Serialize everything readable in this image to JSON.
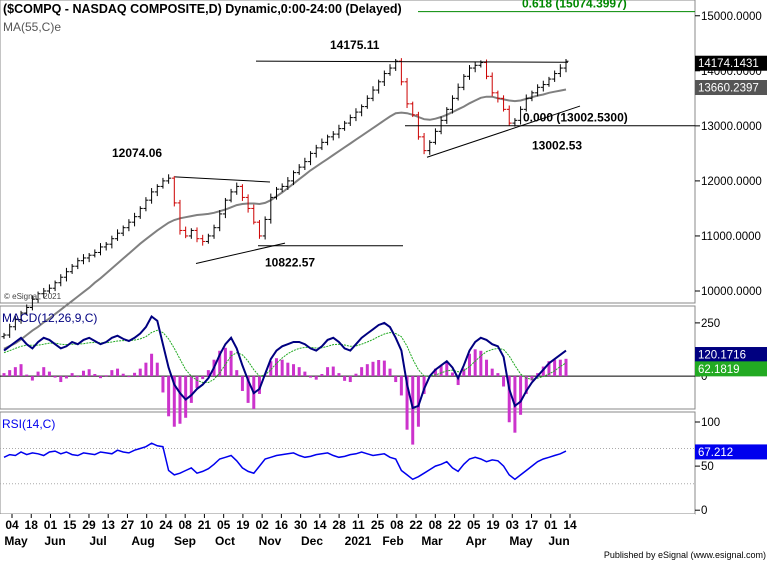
{
  "chart_data": {
    "type": "financial-chart",
    "title": "($COMPQ - NASDAQ COMPOSITE,D) Dynamic,0:00-24:00 (Delayed)",
    "ma_label": "MA(55,C)e",
    "watermark": "© eSignal, 2021",
    "footer": "Published by eSignal (www.esignal.com)",
    "colors": {
      "up": "#000000",
      "down": "#cc0000",
      "ma": "#808080",
      "macd": "#000080",
      "signal": "#22aa22",
      "histogram": "#cc33cc",
      "rsi": "#0000ee",
      "fib": "#008800",
      "last_price_bg": "#000000",
      "ma_bg": "#555555",
      "macd_bg": "#000080",
      "signal_bg": "#22aa22",
      "rsi_bg": "#0000ee"
    },
    "x_axis": {
      "day_labels": [
        "04",
        "18",
        "01",
        "15",
        "29",
        "13",
        "27",
        "10",
        "24",
        "08",
        "21",
        "05",
        "19",
        "02",
        "16",
        "30",
        "14",
        "28",
        "11",
        "25",
        "08",
        "22",
        "08",
        "22",
        "05",
        "19",
        "03",
        "17",
        "01",
        "14"
      ],
      "month_labels": [
        "May",
        "Jun",
        "Jul",
        "Aug",
        "Sep",
        "Oct",
        "Nov",
        "Dec",
        "2021",
        "Feb",
        "Mar",
        "Apr",
        "May",
        "Jun"
      ]
    },
    "price_panel": {
      "ylim": [
        9800,
        15250
      ],
      "ticks": [
        "10000.0000",
        "11000.0000",
        "12000.0000",
        "13000.0000",
        "14000.0000",
        "15000.0000"
      ],
      "last_price": "14174.1431",
      "ma_value": "13660.2397",
      "closes": [
        9200,
        9350,
        9480,
        9600,
        9700,
        9850,
        9950,
        10000,
        10050,
        10150,
        10250,
        10350,
        10450,
        10550,
        10600,
        10650,
        10700,
        10800,
        10850,
        10950,
        11050,
        11150,
        11250,
        11350,
        11500,
        11650,
        11800,
        11900,
        12000,
        12050,
        11600,
        11100,
        11000,
        11100,
        10950,
        10900,
        11000,
        11150,
        11400,
        11650,
        11800,
        11900,
        11700,
        11500,
        11250,
        11000,
        11300,
        11700,
        11850,
        11900,
        12000,
        12150,
        12250,
        12350,
        12500,
        12600,
        12700,
        12800,
        12850,
        12950,
        13050,
        13150,
        13250,
        13350,
        13500,
        13650,
        13800,
        13950,
        14050,
        14175,
        13800,
        13400,
        13200,
        12800,
        12550,
        12700,
        12900,
        13100,
        13300,
        13500,
        13700,
        13900,
        14050,
        14100,
        14150,
        13900,
        13600,
        13500,
        13300,
        13050,
        13100,
        13300,
        13500,
        13600,
        13700,
        13750,
        13850,
        13950,
        14050,
        14174
      ],
      "ma": [
        8950,
        9000,
        9050,
        9120,
        9200,
        9280,
        9350,
        9430,
        9500,
        9580,
        9660,
        9740,
        9820,
        9900,
        9980,
        10060,
        10150,
        10230,
        10320,
        10410,
        10500,
        10590,
        10680,
        10770,
        10860,
        10940,
        11020,
        11100,
        11170,
        11240,
        11290,
        11320,
        11340,
        11360,
        11380,
        11390,
        11400,
        11420,
        11450,
        11480,
        11520,
        11560,
        11580,
        11590,
        11590,
        11580,
        11600,
        11650,
        11720,
        11790,
        11870,
        11950,
        12030,
        12110,
        12190,
        12260,
        12330,
        12400,
        12470,
        12540,
        12610,
        12680,
        12750,
        12820,
        12890,
        12960,
        13030,
        13100,
        13170,
        13230,
        13240,
        13230,
        13200,
        13160,
        13120,
        13110,
        13130,
        13160,
        13200,
        13250,
        13300,
        13350,
        13410,
        13460,
        13510,
        13530,
        13530,
        13500,
        13480,
        13460,
        13450,
        13460,
        13490,
        13520,
        13550,
        13570,
        13600,
        13620,
        13640,
        13660
      ]
    },
    "annotations": {
      "high_left": "12074.06",
      "low_left": "10822.57",
      "high_right": "14175.11",
      "low_right": "13002.53",
      "fib_618": "0.618 (15074.3997)",
      "fib_000": "0.000 (13002.5300)"
    },
    "macd_panel": {
      "label": "MACD(12,26,9,C)",
      "ylim": [
        -150,
        320
      ],
      "ticks": [
        "250",
        "0"
      ],
      "macd_value": "120.1716",
      "signal_value": "62.1819",
      "macd": [
        120,
        140,
        160,
        180,
        150,
        130,
        160,
        180,
        170,
        150,
        130,
        140,
        160,
        150,
        170,
        180,
        165,
        150,
        160,
        180,
        190,
        175,
        165,
        180,
        200,
        230,
        280,
        260,
        150,
        40,
        -40,
        -80,
        -110,
        -90,
        -60,
        -40,
        -10,
        40,
        100,
        150,
        180,
        130,
        50,
        -20,
        -80,
        -60,
        10,
        80,
        120,
        140,
        150,
        160,
        160,
        150,
        130,
        120,
        140,
        170,
        180,
        160,
        130,
        120,
        150,
        180,
        200,
        220,
        240,
        250,
        230,
        180,
        120,
        -40,
        -150,
        -140,
        -60,
        0,
        30,
        50,
        70,
        40,
        -10,
        50,
        120,
        160,
        180,
        170,
        150,
        140,
        90,
        -60,
        -140,
        -120,
        -70,
        -30,
        0,
        30,
        60,
        80,
        100,
        120
      ],
      "signal": [
        110,
        120,
        130,
        140,
        145,
        145,
        145,
        150,
        155,
        155,
        150,
        148,
        150,
        150,
        152,
        157,
        158,
        157,
        157,
        160,
        165,
        167,
        167,
        169,
        175,
        185,
        205,
        215,
        205,
        175,
        130,
        80,
        30,
        0,
        -20,
        -30,
        -30,
        -15,
        15,
        55,
        95,
        110,
        100,
        70,
        30,
        0,
        5,
        30,
        60,
        85,
        105,
        120,
        130,
        135,
        135,
        132,
        133,
        140,
        148,
        150,
        146,
        140,
        142,
        150,
        160,
        172,
        186,
        198,
        205,
        200,
        185,
        140,
        80,
        30,
        0,
        0,
        5,
        15,
        25,
        28,
        20,
        25,
        45,
        70,
        95,
        115,
        125,
        130,
        125,
        95,
        50,
        10,
        -10,
        -15,
        -10,
        -2,
        10,
        25,
        45,
        62
      ]
    },
    "rsi_panel": {
      "label": "RSI(14,C)",
      "ylim": [
        0,
        100
      ],
      "ticks": [
        "100",
        "50",
        "0"
      ],
      "value": "67.212",
      "rsi": [
        60,
        63,
        62,
        66,
        63,
        65,
        64,
        62,
        66,
        67,
        64,
        66,
        63,
        62,
        65,
        64,
        63,
        66,
        65,
        64,
        68,
        66,
        65,
        68,
        70,
        72,
        76,
        73,
        72,
        45,
        40,
        42,
        45,
        48,
        42,
        44,
        47,
        52,
        58,
        60,
        62,
        56,
        48,
        44,
        42,
        50,
        58,
        60,
        62,
        63,
        64,
        65,
        62,
        60,
        61,
        63,
        64,
        65,
        62,
        60,
        61,
        63,
        64,
        66,
        64,
        62,
        63,
        64,
        60,
        58,
        45,
        40,
        35,
        38,
        42,
        46,
        50,
        52,
        55,
        48,
        44,
        52,
        58,
        60,
        58,
        55,
        57,
        56,
        50,
        40,
        35,
        40,
        45,
        50,
        55,
        58,
        60,
        62,
        64,
        67
      ]
    }
  }
}
